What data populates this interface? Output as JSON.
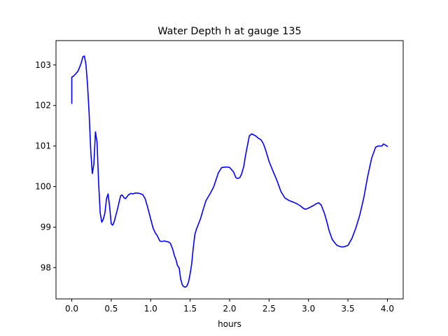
{
  "chart_data": {
    "type": "line",
    "title": "Water Depth h at gauge 135",
    "xlabel": "hours",
    "ylabel": "",
    "xlim": [
      -0.2,
      4.2
    ],
    "ylim": [
      97.23,
      103.6
    ],
    "xticks": [
      0.0,
      0.5,
      1.0,
      1.5,
      2.0,
      2.5,
      3.0,
      3.5,
      4.0
    ],
    "xtick_labels": [
      "0.0",
      "0.5",
      "1.0",
      "1.5",
      "2.0",
      "2.5",
      "3.0",
      "3.5",
      "4.0"
    ],
    "yticks": [
      98,
      99,
      100,
      101,
      102,
      103
    ],
    "ytick_labels": [
      "98",
      "99",
      "100",
      "101",
      "102",
      "103"
    ],
    "grid": false,
    "legend": "none",
    "series": [
      {
        "color": "#0000ff",
        "x": [
          0.0,
          0.0,
          0.02,
          0.05,
          0.08,
          0.1,
          0.12,
          0.14,
          0.16,
          0.18,
          0.2,
          0.22,
          0.24,
          0.26,
          0.28,
          0.3,
          0.32,
          0.34,
          0.36,
          0.38,
          0.4,
          0.42,
          0.44,
          0.46,
          0.48,
          0.5,
          0.52,
          0.54,
          0.56,
          0.58,
          0.6,
          0.62,
          0.64,
          0.66,
          0.68,
          0.7,
          0.72,
          0.75,
          0.78,
          0.8,
          0.83,
          0.86,
          0.9,
          0.93,
          0.96,
          1.0,
          1.03,
          1.06,
          1.08,
          1.1,
          1.12,
          1.15,
          1.18,
          1.2,
          1.22,
          1.25,
          1.28,
          1.3,
          1.32,
          1.34,
          1.36,
          1.38,
          1.4,
          1.42,
          1.44,
          1.46,
          1.48,
          1.5,
          1.52,
          1.54,
          1.56,
          1.58,
          1.6,
          1.63,
          1.66,
          1.7,
          1.73,
          1.76,
          1.8,
          1.83,
          1.86,
          1.9,
          1.95,
          1.98,
          2.0,
          2.02,
          2.05,
          2.08,
          2.1,
          2.13,
          2.15,
          2.18,
          2.2,
          2.22,
          2.25,
          2.28,
          2.3,
          2.33,
          2.36,
          2.4,
          2.43,
          2.46,
          2.5,
          2.55,
          2.6,
          2.65,
          2.7,
          2.75,
          2.8,
          2.85,
          2.9,
          2.93,
          2.96,
          3.0,
          3.03,
          3.06,
          3.1,
          3.13,
          3.16,
          3.2,
          3.23,
          3.26,
          3.3,
          3.33,
          3.36,
          3.4,
          3.43,
          3.46,
          3.5,
          3.55,
          3.6,
          3.65,
          3.7,
          3.75,
          3.8,
          3.85,
          3.88,
          3.9,
          3.93,
          3.95,
          3.97,
          4.0
        ],
        "y": [
          102.05,
          102.7,
          102.72,
          102.78,
          102.85,
          102.95,
          103.05,
          103.2,
          103.22,
          103.0,
          102.5,
          101.8,
          100.9,
          100.32,
          100.55,
          101.35,
          101.1,
          100.1,
          99.35,
          99.12,
          99.2,
          99.35,
          99.7,
          99.82,
          99.5,
          99.08,
          99.05,
          99.15,
          99.3,
          99.45,
          99.62,
          99.78,
          99.79,
          99.73,
          99.7,
          99.75,
          99.8,
          99.83,
          99.82,
          99.84,
          99.84,
          99.83,
          99.8,
          99.7,
          99.5,
          99.2,
          98.98,
          98.85,
          98.8,
          98.72,
          98.65,
          98.65,
          98.66,
          98.64,
          98.64,
          98.6,
          98.45,
          98.3,
          98.2,
          98.05,
          98.0,
          97.72,
          97.58,
          97.53,
          97.52,
          97.55,
          97.65,
          97.85,
          98.1,
          98.5,
          98.82,
          98.95,
          99.05,
          99.2,
          99.4,
          99.65,
          99.75,
          99.85,
          100.0,
          100.18,
          100.35,
          100.47,
          100.48,
          100.48,
          100.47,
          100.43,
          100.36,
          100.22,
          100.2,
          100.22,
          100.3,
          100.5,
          100.75,
          100.95,
          101.25,
          101.3,
          101.28,
          101.25,
          101.2,
          101.15,
          101.05,
          100.88,
          100.62,
          100.38,
          100.15,
          99.88,
          99.72,
          99.66,
          99.62,
          99.58,
          99.52,
          99.47,
          99.44,
          99.47,
          99.5,
          99.53,
          99.58,
          99.6,
          99.55,
          99.35,
          99.15,
          98.92,
          98.7,
          98.62,
          98.55,
          98.52,
          98.51,
          98.52,
          98.55,
          98.72,
          98.98,
          99.3,
          99.72,
          100.25,
          100.7,
          100.97,
          101.0,
          101.0,
          101.0,
          101.05,
          101.03,
          100.99
        ]
      }
    ]
  }
}
